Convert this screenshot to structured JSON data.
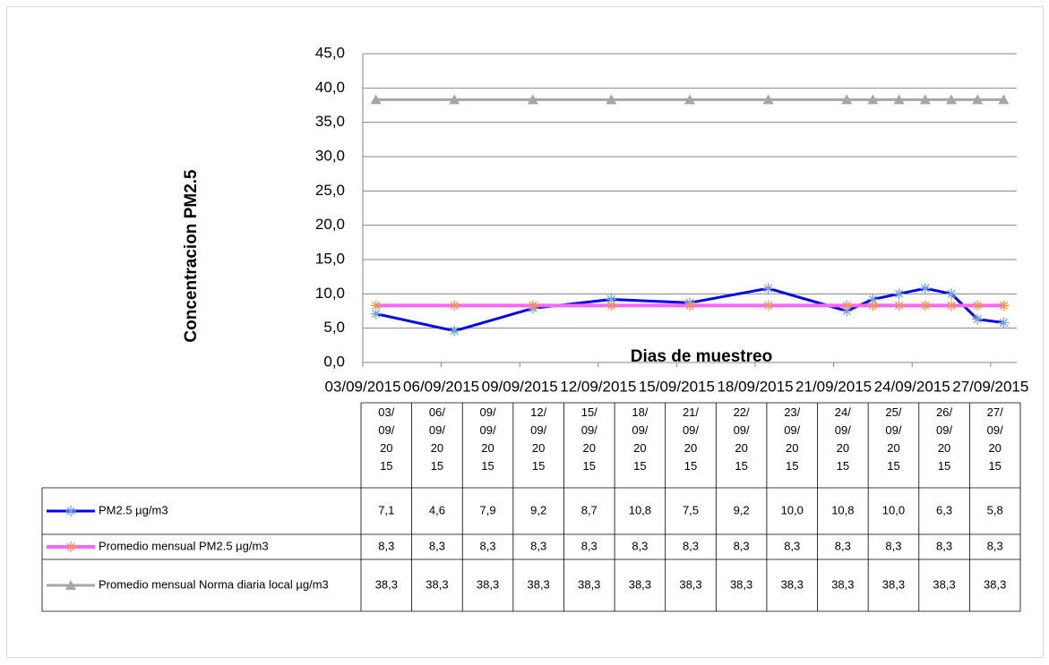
{
  "chart_data": {
    "type": "line",
    "x_label": "Dias de muestreo",
    "y_label": "Concentracion  PM2.5",
    "x": [
      "03/09/2015",
      "06/09/2015",
      "09/09/2015",
      "12/09/2015",
      "15/09/2015",
      "18/09/2015",
      "21/09/2015",
      "22/09/2015",
      "23/09/2015",
      "24/09/2015",
      "25/09/2015",
      "26/09/2015",
      "27/09/2015"
    ],
    "xlim": [
      "03/09/2015",
      "27/09/2015"
    ],
    "xticks": [
      "03/09/2015",
      "06/09/2015",
      "09/09/2015",
      "12/09/2015",
      "15/09/2015",
      "18/09/2015",
      "21/09/2015",
      "24/09/2015",
      "27/09/2015"
    ],
    "ylim": [
      0,
      45
    ],
    "yticks": [
      {
        "value": 0,
        "label": "0,0"
      },
      {
        "value": 5,
        "label": "5,0"
      },
      {
        "value": 10,
        "label": "10,0"
      },
      {
        "value": 15,
        "label": "15,0"
      },
      {
        "value": 20,
        "label": "20,0"
      },
      {
        "value": 25,
        "label": "25,0"
      },
      {
        "value": 30,
        "label": "30,0"
      },
      {
        "value": 35,
        "label": "35,0"
      },
      {
        "value": 40,
        "label": "40,0"
      },
      {
        "value": 45,
        "label": "45,0"
      }
    ],
    "grid": true,
    "data_table": true,
    "series": [
      {
        "name": "PM2.5 µg/m3",
        "color": "#0000ff",
        "marker": "asterisk",
        "marker_color": "#6fa8dc",
        "values": [
          7.1,
          4.6,
          7.9,
          9.2,
          8.7,
          10.8,
          7.5,
          9.2,
          10.0,
          10.8,
          10.0,
          6.3,
          5.8
        ],
        "value_labels": [
          "7,1",
          "4,6",
          "7,9",
          "9,2",
          "8,7",
          "10,8",
          "7,5",
          "9,2",
          "10,0",
          "10,8",
          "10,0",
          "6,3",
          "5,8"
        ]
      },
      {
        "name": "Promedio mensual PM2.5 µg/m3",
        "color": "#ff66ff",
        "marker": "asterisk",
        "marker_color": "#f79646",
        "values": [
          8.3,
          8.3,
          8.3,
          8.3,
          8.3,
          8.3,
          8.3,
          8.3,
          8.3,
          8.3,
          8.3,
          8.3,
          8.3
        ],
        "value_labels": [
          "8,3",
          "8,3",
          "8,3",
          "8,3",
          "8,3",
          "8,3",
          "8,3",
          "8,3",
          "8,3",
          "8,3",
          "8,3",
          "8,3",
          "8,3"
        ]
      },
      {
        "name": "Promedio mensual Norma diaria local µg/m3",
        "color": "#a6a6a6",
        "marker": "triangle",
        "marker_color": "#a6a6a6",
        "values": [
          38.3,
          38.3,
          38.3,
          38.3,
          38.3,
          38.3,
          38.3,
          38.3,
          38.3,
          38.3,
          38.3,
          38.3,
          38.3
        ],
        "value_labels": [
          "38,3",
          "38,3",
          "38,3",
          "38,3",
          "38,3",
          "38,3",
          "38,3",
          "38,3",
          "38,3",
          "38,3",
          "38,3",
          "38,3",
          "38,3"
        ]
      }
    ]
  }
}
